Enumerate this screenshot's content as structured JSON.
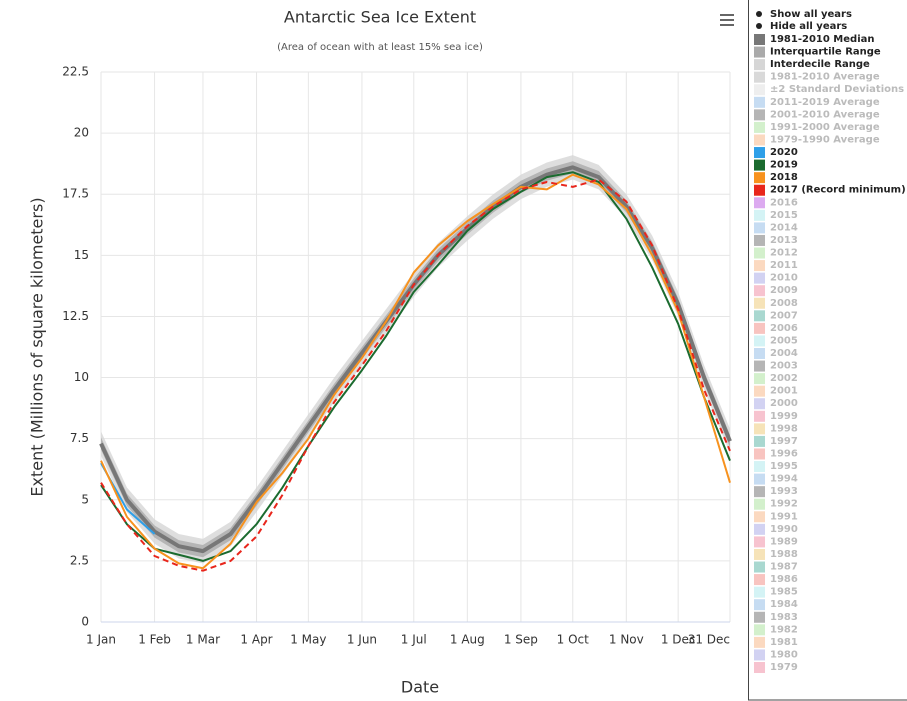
{
  "chart_data": {
    "type": "line",
    "title": "Antarctic Sea Ice Extent",
    "subtitle": "(Area of ocean with at least 15% sea ice)",
    "x_label": "Date",
    "y_label": "Extent (Millions of square kilometers)",
    "x": [
      0,
      15,
      31,
      45,
      59,
      75,
      90,
      105,
      120,
      135,
      151,
      165,
      181,
      195,
      212,
      227,
      243,
      258,
      273,
      288,
      304,
      319,
      334,
      349,
      364
    ],
    "xlim": [
      0,
      364
    ],
    "xticks": [
      {
        "value": 0,
        "label": "1 Jan"
      },
      {
        "value": 31,
        "label": "1 Feb"
      },
      {
        "value": 59,
        "label": "1 Mar"
      },
      {
        "value": 90,
        "label": "1 Apr"
      },
      {
        "value": 120,
        "label": "1 May"
      },
      {
        "value": 151,
        "label": "1 Jun"
      },
      {
        "value": 181,
        "label": "1 Jul"
      },
      {
        "value": 212,
        "label": "1 Aug"
      },
      {
        "value": 243,
        "label": "1 Sep"
      },
      {
        "value": 273,
        "label": "1 Oct"
      },
      {
        "value": 304,
        "label": "1 Nov"
      },
      {
        "value": 334,
        "label": "1 Dec"
      },
      {
        "value": 364,
        "label": "31 Dec"
      }
    ],
    "ylim": [
      0,
      22.5
    ],
    "yticks": [
      0,
      2.5,
      5,
      7.5,
      10,
      12.5,
      15,
      17.5,
      20,
      22.5
    ],
    "grid": true,
    "buttons": [
      "Show all years",
      "Hide all years"
    ],
    "ranges": [
      {
        "name": "Interdecile Range",
        "color": "#d6d6d6",
        "low": [
          6.8,
          4.5,
          3.2,
          2.6,
          2.4,
          3.1,
          4.5,
          6.0,
          7.5,
          9.0,
          10.5,
          11.8,
          13.3,
          14.5,
          15.6,
          16.5,
          17.3,
          17.8,
          18.1,
          17.7,
          16.5,
          14.8,
          12.5,
          9.5,
          6.9
        ],
        "high": [
          7.8,
          5.5,
          4.2,
          3.6,
          3.4,
          4.1,
          5.5,
          7.0,
          8.5,
          10.0,
          11.5,
          12.8,
          14.3,
          15.5,
          16.6,
          17.5,
          18.3,
          18.8,
          19.1,
          18.7,
          17.5,
          15.8,
          13.5,
          10.5,
          7.9
        ]
      },
      {
        "name": "Interquartile Range",
        "color": "#aaaaaa",
        "low": [
          7.05,
          4.75,
          3.45,
          2.85,
          2.65,
          3.35,
          4.75,
          6.25,
          7.75,
          9.25,
          10.75,
          12.05,
          13.55,
          14.75,
          15.85,
          16.75,
          17.55,
          18.05,
          18.35,
          17.95,
          16.75,
          15.05,
          12.75,
          9.75,
          7.15
        ],
        "high": [
          7.55,
          5.25,
          3.95,
          3.35,
          3.15,
          3.85,
          5.25,
          6.75,
          8.25,
          9.75,
          11.25,
          12.55,
          14.05,
          15.25,
          16.35,
          17.25,
          18.05,
          18.55,
          18.85,
          18.45,
          17.25,
          15.55,
          13.25,
          10.25,
          7.65
        ]
      }
    ],
    "series": [
      {
        "name": "1981-2010 Median",
        "color": "#777777",
        "values": [
          7.3,
          5.0,
          3.7,
          3.1,
          2.9,
          3.6,
          5.0,
          6.5,
          8.0,
          9.5,
          11.0,
          12.3,
          13.8,
          15.0,
          16.1,
          17.0,
          17.8,
          18.3,
          18.6,
          18.2,
          17.0,
          15.3,
          13.0,
          10.0,
          7.4
        ]
      }
    ],
    "averages_hidden": [
      {
        "name": "1981-2010 Average",
        "color": "#d9d9d9"
      },
      {
        "name": "±2 Standard Deviations",
        "color": "#eeeeee"
      },
      {
        "name": "2011-2019 Average",
        "color": "#c6dcf2"
      },
      {
        "name": "2001-2010 Average",
        "color": "#b5b5b5"
      },
      {
        "name": "1991-2000 Average",
        "color": "#d3f0cc"
      },
      {
        "name": "1979-1990 Average",
        "color": "#fbd9c0"
      }
    ],
    "years": [
      {
        "name": "2020",
        "color": "#2e9fe8",
        "dashed": false,
        "values": [
          6.5,
          4.6,
          3.6,
          null,
          null,
          null,
          null,
          null,
          null,
          null,
          null,
          null,
          null,
          null,
          null,
          null,
          null,
          null,
          null,
          null,
          null,
          null,
          null,
          null,
          null
        ]
      },
      {
        "name": "2019",
        "color": "#1b6b2f",
        "dashed": false,
        "values": [
          5.6,
          4.0,
          3.0,
          2.75,
          2.5,
          2.9,
          4.0,
          5.5,
          7.2,
          8.8,
          10.3,
          11.7,
          13.5,
          14.6,
          16.0,
          16.9,
          17.6,
          18.2,
          18.4,
          18.0,
          16.5,
          14.5,
          12.2,
          9.2,
          6.6
        ]
      },
      {
        "name": "2018",
        "color": "#f7921e",
        "dashed": false,
        "values": [
          6.6,
          4.3,
          3.0,
          2.4,
          2.2,
          3.2,
          4.9,
          6.1,
          7.5,
          9.3,
          10.8,
          12.3,
          14.3,
          15.4,
          16.4,
          17.1,
          17.8,
          17.7,
          18.3,
          17.9,
          16.9,
          15.0,
          12.7,
          9.2,
          5.7
        ]
      },
      {
        "name": "2017 (Record minimum)",
        "color": "#e8261c",
        "dashed": true,
        "values": [
          5.7,
          4.0,
          2.7,
          2.3,
          2.1,
          2.5,
          3.5,
          5.2,
          7.2,
          9.0,
          10.5,
          11.9,
          13.8,
          15.0,
          16.2,
          17.0,
          17.7,
          18.0,
          17.8,
          18.1,
          17.2,
          15.4,
          12.8,
          9.5,
          7.0
        ]
      }
    ],
    "years_hidden": [
      {
        "name": "2016",
        "color": "#dcaaf0"
      },
      {
        "name": "2015",
        "color": "#d4f3f5"
      },
      {
        "name": "2014",
        "color": "#c6dcf2"
      },
      {
        "name": "2013",
        "color": "#b5b5b5"
      },
      {
        "name": "2012",
        "color": "#d3f0cc"
      },
      {
        "name": "2011",
        "color": "#fbd9c0"
      },
      {
        "name": "2010",
        "color": "#d2d2f2"
      },
      {
        "name": "2009",
        "color": "#f7c3cf"
      },
      {
        "name": "2008",
        "color": "#f6e3b8"
      },
      {
        "name": "2007",
        "color": "#a9d8d0"
      },
      {
        "name": "2006",
        "color": "#f8c4c0"
      },
      {
        "name": "2005",
        "color": "#d4f3f5"
      },
      {
        "name": "2004",
        "color": "#c6dcf2"
      },
      {
        "name": "2003",
        "color": "#b5b5b5"
      },
      {
        "name": "2002",
        "color": "#d3f0cc"
      },
      {
        "name": "2001",
        "color": "#fbd9c0"
      },
      {
        "name": "2000",
        "color": "#d2d2f2"
      },
      {
        "name": "1999",
        "color": "#f7c3cf"
      },
      {
        "name": "1998",
        "color": "#f6e3b8"
      },
      {
        "name": "1997",
        "color": "#a9d8d0"
      },
      {
        "name": "1996",
        "color": "#f8c4c0"
      },
      {
        "name": "1995",
        "color": "#d4f3f5"
      },
      {
        "name": "1994",
        "color": "#c6dcf2"
      },
      {
        "name": "1993",
        "color": "#b5b5b5"
      },
      {
        "name": "1992",
        "color": "#d3f0cc"
      },
      {
        "name": "1991",
        "color": "#fbd9c0"
      },
      {
        "name": "1990",
        "color": "#d2d2f2"
      },
      {
        "name": "1989",
        "color": "#f7c3cf"
      },
      {
        "name": "1988",
        "color": "#f6e3b8"
      },
      {
        "name": "1987",
        "color": "#a9d8d0"
      },
      {
        "name": "1986",
        "color": "#f8c4c0"
      },
      {
        "name": "1985",
        "color": "#d4f3f5"
      },
      {
        "name": "1984",
        "color": "#c6dcf2"
      },
      {
        "name": "1983",
        "color": "#b5b5b5"
      },
      {
        "name": "1982",
        "color": "#d3f0cc"
      },
      {
        "name": "1981",
        "color": "#fbd9c0"
      },
      {
        "name": "1980",
        "color": "#d2d2f2"
      },
      {
        "name": "1979",
        "color": "#f7c3cf"
      }
    ]
  }
}
